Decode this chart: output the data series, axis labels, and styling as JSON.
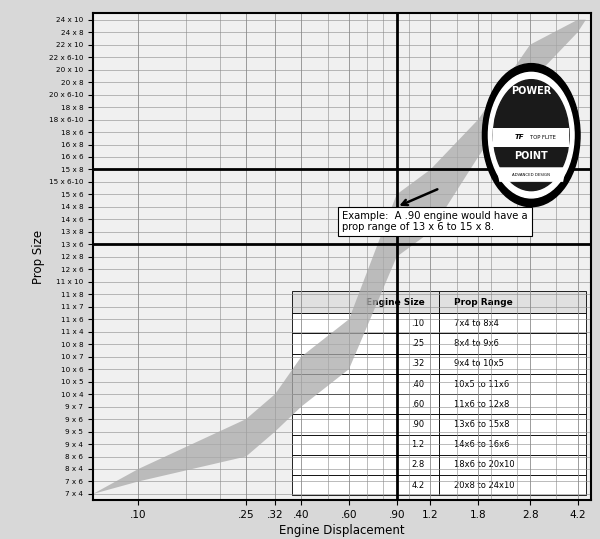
{
  "title_y": "Prop Size",
  "title_x": "Engine Displacement",
  "ytick_labels_top_to_bottom": [
    "24 x 10",
    "24 x 8",
    "22 x 10",
    "22 x 6-10",
    "20 x 10",
    "20 x 8",
    "20 x 6-10",
    "18 x 8",
    "18 x 6-10",
    "18 x 6",
    "16 x 8",
    "16 x 6",
    "15 x 8",
    "15 x 6-10",
    "15 x 6",
    "14 x 8",
    "14 x 6",
    "13 x 8",
    "13 x 6",
    "12 x 8",
    "12 x 6",
    "11 x 10",
    "11 x 8",
    "11 x 7",
    "11 x 6",
    "11 x 4",
    "10 x 8",
    "10 x 7",
    "10 x 6",
    "10 x 5",
    "10 x 4",
    "9 x 7",
    "9 x 6",
    "9 x 5",
    "9 x 4",
    "8 x 6",
    "8 x 4",
    "7 x 6",
    "7 x 4"
  ],
  "xtick_positions": [
    0.1,
    0.25,
    0.32,
    0.4,
    0.6,
    0.9,
    1.2,
    1.8,
    2.8,
    4.2
  ],
  "xtick_labels": [
    ".10",
    ".25",
    ".32",
    ".40",
    ".60",
    ".90",
    "1.2",
    "1.8",
    "2.8",
    "4.2"
  ],
  "band_lower_x": [
    0.068,
    0.1,
    0.25,
    0.32,
    0.4,
    0.6,
    0.9,
    1.2,
    1.8,
    2.8,
    4.2,
    4.5
  ],
  "band_lower_y": [
    38,
    37,
    35,
    33,
    31,
    28,
    19,
    17,
    11,
    5,
    1,
    0
  ],
  "band_upper_x": [
    0.068,
    0.1,
    0.25,
    0.32,
    0.4,
    0.6,
    0.9,
    1.2,
    1.8,
    2.8,
    4.2,
    4.5
  ],
  "band_upper_y": [
    38,
    36,
    32,
    30,
    27,
    24,
    14,
    12,
    8,
    2,
    0,
    0
  ],
  "band_fill_color": "#aaaaaa",
  "band_alpha": 0.75,
  "example_engine": 0.9,
  "example_text": "Example:  A .90 engine would have a\nprop range of 13 x 6 to 15 x 8.",
  "table_engine_sizes": [
    ".10",
    ".25",
    ".32",
    ".40",
    ".60",
    ".90",
    "1.2",
    "2.8",
    "4.2"
  ],
  "table_prop_ranges": [
    "7x4 to 8x4",
    "8x4 to 9x6",
    "9x4 to 10x5",
    "10x5 to 11x6",
    "11x6 to 12x8",
    "13x6 to 15x8",
    "14x6 to 16x6",
    "18x6 to 20x10",
    "20x8 to 24x10"
  ],
  "fig_facecolor": "#d8d8d8",
  "ax_facecolor": "#f0f0f0"
}
